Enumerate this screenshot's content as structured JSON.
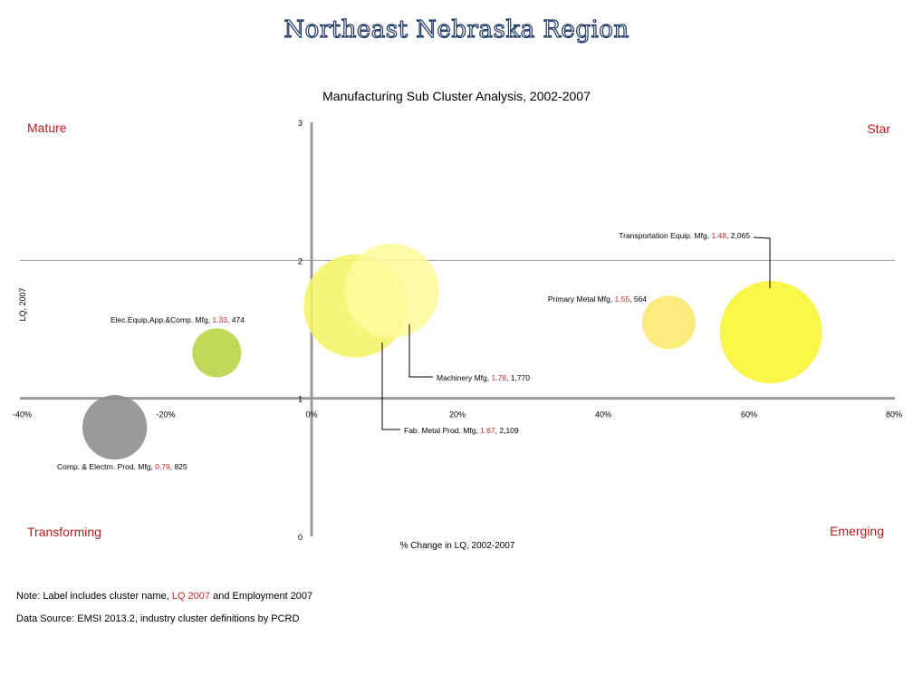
{
  "header": {
    "region_title": "Northeast Nebraska Region",
    "chart_title": "Manufacturing Sub Cluster Analysis, 2002-2007"
  },
  "quadrants": {
    "top_left": "Mature",
    "top_right": "Star",
    "bottom_left": "Transforming",
    "bottom_right": "Emerging"
  },
  "notes": {
    "note_prefix": "Note: Label includes cluster name,",
    "note_lq": "LQ 2007",
    "note_suffix": "and Employment 2007",
    "source": "Data Source: EMSI 2013.2, industry cluster definitions by PCRD"
  },
  "colors": {
    "axis": "#999999",
    "label_red": "#c62828",
    "quadrant_red": "#b71c1c"
  },
  "chart_data": {
    "type": "scatter",
    "bubble": true,
    "title": "Manufacturing Sub Cluster Analysis, 2002-2007",
    "xlabel": "% Change in LQ, 2002-2007",
    "ylabel": "LQ, 2007",
    "xlim": [
      -0.4,
      0.8
    ],
    "ylim": [
      0,
      3
    ],
    "x_ticks": [
      {
        "value": -0.4,
        "label": "-40%"
      },
      {
        "value": -0.2,
        "label": "-20%"
      },
      {
        "value": 0,
        "label": "0%"
      },
      {
        "value": 0.2,
        "label": "20%"
      },
      {
        "value": 0.4,
        "label": "40%"
      },
      {
        "value": 0.6,
        "label": "60%"
      },
      {
        "value": 0.8,
        "label": "80%"
      }
    ],
    "y_ticks": [
      {
        "value": 0,
        "label": "0"
      },
      {
        "value": 1,
        "label": "1"
      },
      {
        "value": 2,
        "label": "2"
      },
      {
        "value": 3,
        "label": "3"
      }
    ],
    "grid": true,
    "points": [
      {
        "name": "Transportation Equip. Mfg",
        "x": 0.63,
        "y": 1.48,
        "lq_label": "1.48",
        "employment": 2065,
        "emp_label": "2,065",
        "color": "#f6f530"
      },
      {
        "name": "Primary Metal Mfg",
        "x": 0.49,
        "y": 1.55,
        "lq_label": "1.55",
        "employment": 564,
        "emp_label": "564",
        "color": "#fbe86a"
      },
      {
        "name": "Elec.Equip,App.&Comp. Mfg",
        "x": -0.13,
        "y": 1.33,
        "lq_label": "1.33",
        "employment": 474,
        "emp_label": "474",
        "color": "#b7d340"
      },
      {
        "name": "Machinery Mfg",
        "x": 0.11,
        "y": 1.78,
        "lq_label": "1.78",
        "employment": 1770,
        "emp_label": "1,770",
        "color": "#fdfa9c"
      },
      {
        "name": "Fab. Metal Prod. Mfg",
        "x": 0.06,
        "y": 1.67,
        "lq_label": "1.67",
        "employment": 2109,
        "emp_label": "2,109",
        "color": "#f4f466"
      },
      {
        "name": "Comp. & Electrn. Prod. Mfg",
        "x": -0.27,
        "y": 0.79,
        "lq_label": "0.79",
        "employment": 825,
        "emp_label": "825",
        "color": "#8c8c8c"
      }
    ]
  }
}
